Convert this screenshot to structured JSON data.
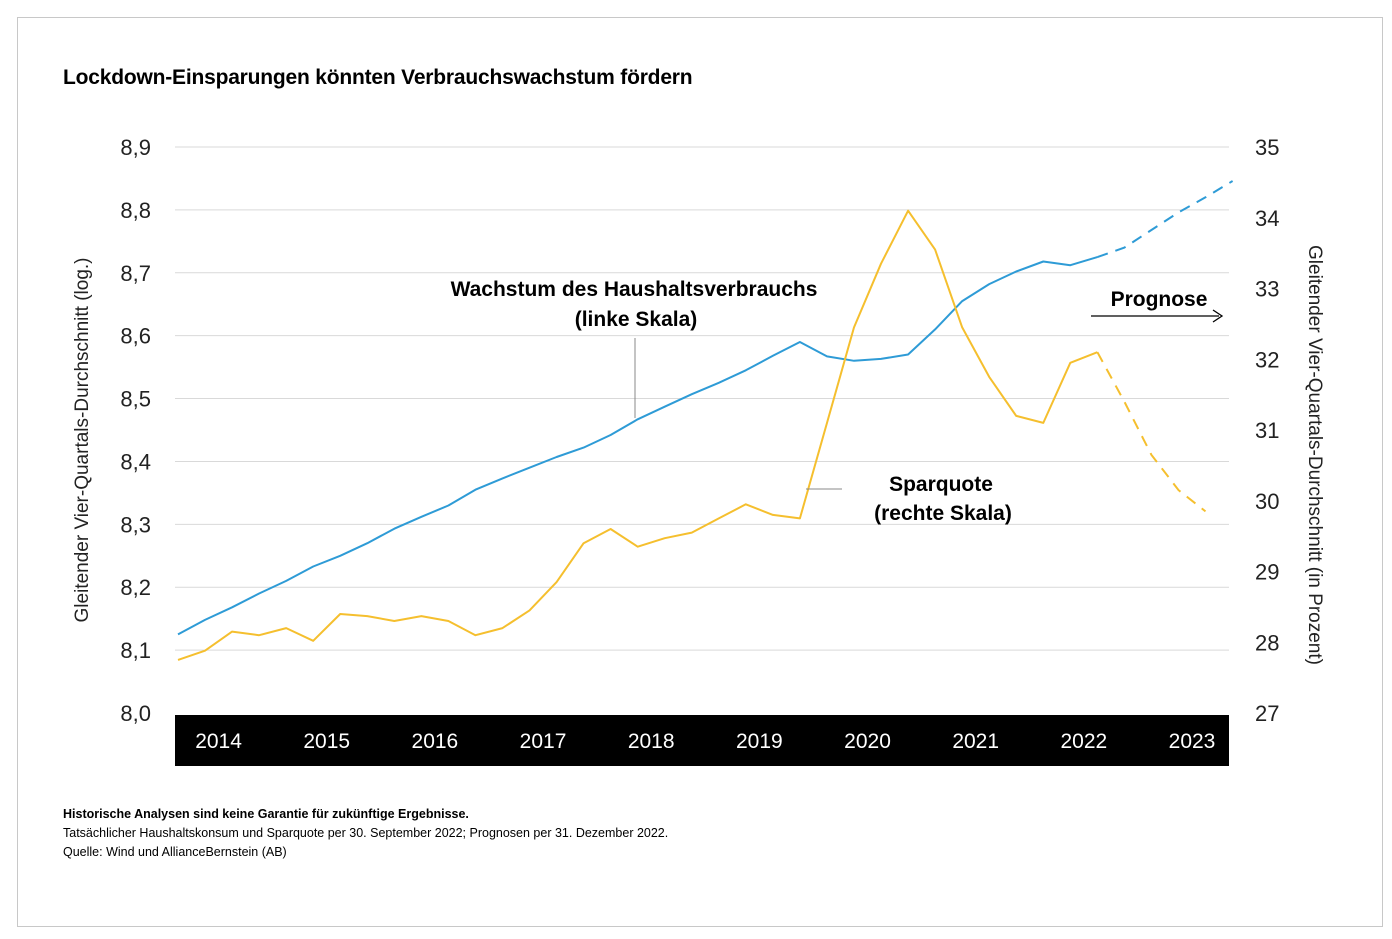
{
  "title": "Lockdown-Einsparungen könnten Verbrauchswachstum fördern",
  "footnotes": {
    "disclaimer": "Historische Analysen sind keine Garantie für zukünftige Ergebnisse.",
    "note": "Tatsächlicher Haushaltskonsum und Sparquote per 30. September 2022; Prognosen per 31. Dezember 2022.",
    "source": "Quelle: Wind und AllianceBernstein (AB)"
  },
  "chart_data": {
    "type": "line",
    "ylabel_left": "Gleitender Vier-Quartals-Durchschnitt (log.)",
    "ylabel_right": "Gleitender Vier-Quartals-Durchschnitt (in Prozent)",
    "ylim_left": [
      8.0,
      8.9
    ],
    "ylim_right": [
      27,
      35
    ],
    "yticks_left": [
      "8,0",
      "8,1",
      "8,2",
      "8,3",
      "8,4",
      "8,5",
      "8,6",
      "8,7",
      "8,8",
      "8,9"
    ],
    "yticks_right": [
      "27",
      "28",
      "29",
      "30",
      "31",
      "32",
      "33",
      "34",
      "35"
    ],
    "x_years": [
      "2014",
      "2015",
      "2016",
      "2017",
      "2018",
      "2019",
      "2020",
      "2021",
      "2022",
      "2023"
    ],
    "grid": true,
    "forecast_label": "Prognose",
    "annotations": {
      "consumption_line1": "Wachstum des Haushaltsverbrauchs",
      "consumption_line2": "(linke Skala)",
      "savings_line1": "Sparquote",
      "savings_line2": "(rechte Skala)"
    },
    "series": [
      {
        "name": "Wachstum des Haushaltsverbrauchs",
        "axis": "left",
        "color": "#2e9bd6",
        "actual_values": [
          8.125,
          8.148,
          8.168,
          8.19,
          8.21,
          8.233,
          8.25,
          8.27,
          8.293,
          8.312,
          8.33,
          8.355,
          8.373,
          8.39,
          8.407,
          8.422,
          8.442,
          8.467,
          8.487,
          8.507,
          8.525,
          8.545,
          8.568,
          8.59,
          8.567,
          8.56,
          8.563,
          8.57,
          8.61,
          8.655,
          8.682,
          8.702,
          8.718,
          8.712,
          8.725
        ],
        "forecast_values": [
          8.725,
          8.74,
          8.768,
          8.796,
          8.82,
          8.846
        ]
      },
      {
        "name": "Sparquote",
        "axis": "right",
        "color": "#f5bf2e",
        "actual_values": [
          27.75,
          27.88,
          28.15,
          28.1,
          28.2,
          28.02,
          28.4,
          28.37,
          28.3,
          28.37,
          28.3,
          28.1,
          28.2,
          28.45,
          28.85,
          29.4,
          29.6,
          29.35,
          29.47,
          29.55,
          29.75,
          29.95,
          29.8,
          29.75,
          31.1,
          32.45,
          33.35,
          34.1,
          33.55,
          32.45,
          31.75,
          31.2,
          31.1,
          31.95,
          32.1
        ],
        "forecast_values": [
          32.1,
          31.4,
          30.65,
          30.15,
          29.85
        ]
      }
    ]
  }
}
